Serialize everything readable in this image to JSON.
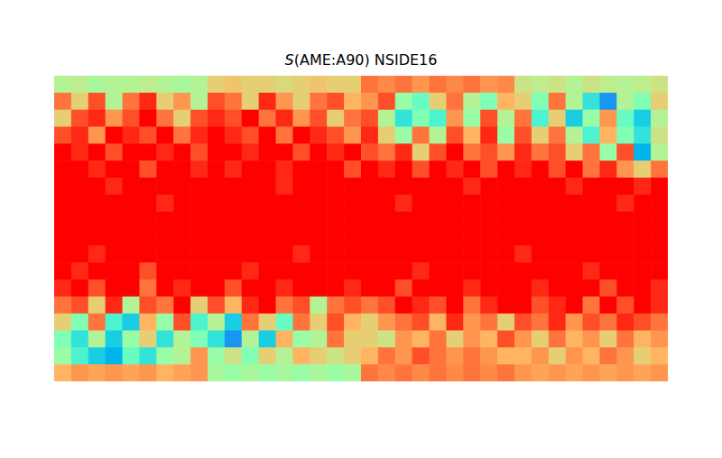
{
  "chart_data": {
    "type": "heatmap",
    "title": "S(AME:A90) NSIDE16",
    "tick_labels": false,
    "grid": false,
    "xlim": [
      -180,
      180
    ],
    "ylim": [
      -90,
      90
    ],
    "clim": [
      0,
      1
    ],
    "x": [
      -175,
      -165,
      -155,
      -145,
      -135,
      -125,
      -115,
      -105,
      -95,
      -85,
      -75,
      -65,
      -55,
      -45,
      -35,
      -25,
      -15,
      -5,
      5,
      15,
      25,
      35,
      45,
      55,
      65,
      75,
      85,
      95,
      105,
      115,
      125,
      135,
      145,
      155,
      165,
      175
    ],
    "y": [
      85,
      75,
      65,
      55,
      45,
      35,
      25,
      15,
      5,
      -5,
      -15,
      -25,
      -35,
      -45,
      -55,
      -65,
      -75,
      -85
    ],
    "values": [
      [
        0.6,
        0.62,
        0.58,
        0.6,
        0.6,
        0.62,
        0.6,
        0.58,
        0.6,
        0.7,
        0.72,
        0.7,
        0.7,
        0.68,
        0.7,
        0.72,
        0.7,
        0.7,
        0.85,
        0.82,
        0.85,
        0.8,
        0.85,
        0.82,
        0.85,
        0.8,
        0.82,
        0.65,
        0.62,
        0.65,
        0.6,
        0.65,
        0.62,
        0.6,
        0.62,
        0.65
      ],
      [
        0.85,
        0.7,
        0.9,
        0.6,
        0.85,
        0.95,
        0.7,
        0.8,
        0.6,
        0.9,
        0.85,
        0.7,
        0.95,
        0.8,
        0.7,
        0.85,
        0.9,
        0.75,
        0.8,
        0.9,
        0.55,
        0.45,
        0.7,
        0.85,
        0.6,
        0.5,
        0.75,
        0.7,
        0.5,
        0.85,
        0.6,
        0.35,
        0.2,
        0.6,
        0.5,
        0.7
      ],
      [
        0.7,
        0.9,
        0.95,
        0.8,
        0.9,
        1,
        0.85,
        0.7,
        0.9,
        0.95,
        0.9,
        1,
        0.85,
        0.95,
        0.8,
        0.9,
        0.7,
        0.85,
        0.9,
        0.6,
        0.35,
        0.5,
        0.4,
        0.8,
        0.55,
        0.9,
        0.6,
        0.85,
        0.4,
        0.7,
        0.3,
        0.55,
        0.8,
        0.45,
        0.3,
        0.6
      ],
      [
        0.9,
        0.95,
        0.8,
        1,
        0.95,
        0.9,
        1,
        0.85,
        0.95,
        1,
        0.95,
        0.9,
        1,
        0.85,
        1,
        0.95,
        0.9,
        0.8,
        0.95,
        0.7,
        0.55,
        0.85,
        0.6,
        0.9,
        0.75,
        0.95,
        0.55,
        0.9,
        0.7,
        0.85,
        0.6,
        0.4,
        0.75,
        0.5,
        0.35,
        0.65
      ],
      [
        1,
        0.95,
        1,
        0.9,
        1,
        1,
        0.95,
        1,
        0.9,
        1,
        1,
        0.95,
        1,
        1,
        0.9,
        1,
        0.95,
        1,
        0.9,
        0.85,
        0.95,
        0.7,
        0.9,
        1,
        0.85,
        0.9,
        0.8,
        0.95,
        0.85,
        0.9,
        0.7,
        0.85,
        0.55,
        0.9,
        0.25,
        0.6
      ],
      [
        1,
        1,
        0.95,
        1,
        1,
        0.9,
        1,
        1,
        0.95,
        1,
        0.95,
        1,
        1,
        0.95,
        1,
        1,
        1,
        0.9,
        1,
        0.95,
        1,
        0.9,
        1,
        0.95,
        1,
        0.9,
        1,
        0.95,
        1,
        0.9,
        1,
        0.85,
        0.95,
        0.8,
        0.7,
        0.85
      ],
      [
        1,
        1,
        1,
        0.95,
        1,
        1,
        1,
        1,
        1,
        1,
        1,
        1,
        1,
        0.95,
        1,
        1,
        1,
        1,
        1,
        1,
        1,
        1,
        1,
        1,
        0.95,
        1,
        1,
        1,
        1,
        1,
        0.95,
        1,
        1,
        1,
        0.95,
        1
      ],
      [
        1,
        1,
        1,
        1,
        1,
        1,
        0.95,
        1,
        1,
        1,
        1,
        1,
        1,
        1,
        1,
        1,
        1,
        1,
        1,
        1,
        0.95,
        1,
        1,
        1,
        1,
        1,
        1,
        1,
        1,
        1,
        1,
        1,
        1,
        0.95,
        1,
        1
      ],
      [
        1,
        1,
        1,
        1,
        1,
        1,
        1,
        1,
        1,
        1,
        1,
        1,
        1,
        1,
        1,
        1,
        1,
        1,
        1,
        1,
        1,
        1,
        1,
        1,
        1,
        1,
        1,
        1,
        1,
        1,
        1,
        1,
        1,
        1,
        1,
        1
      ],
      [
        1,
        1,
        1,
        1,
        1,
        1,
        1,
        1,
        1,
        1,
        1,
        1,
        1,
        1,
        1,
        1,
        1,
        1,
        1,
        1,
        1,
        1,
        1,
        1,
        1,
        1,
        1,
        1,
        1,
        1,
        1,
        1,
        1,
        1,
        1,
        1
      ],
      [
        1,
        1,
        0.95,
        1,
        1,
        1,
        1,
        1,
        1,
        1,
        1,
        1,
        1,
        1,
        0.95,
        1,
        1,
        1,
        1,
        1,
        1,
        1,
        1,
        1,
        1,
        1,
        1,
        0.95,
        1,
        1,
        1,
        1,
        1,
        1,
        1,
        1
      ],
      [
        1,
        0.95,
        1,
        1,
        1,
        0.9,
        1,
        1,
        1,
        1,
        1,
        0.95,
        1,
        1,
        1,
        1,
        1,
        1,
        1,
        1,
        1,
        0.95,
        1,
        1,
        1,
        1,
        1,
        1,
        1,
        1,
        1,
        0.95,
        1,
        1,
        1,
        1
      ],
      [
        0.95,
        1,
        0.9,
        1,
        1,
        0.85,
        1,
        0.95,
        1,
        1,
        0.9,
        1,
        1,
        0.95,
        1,
        1,
        1,
        0.95,
        1,
        1,
        0.9,
        1,
        1,
        1,
        0.95,
        1,
        1,
        1,
        0.95,
        1,
        1,
        1,
        0.9,
        1,
        1,
        0.95
      ],
      [
        0.85,
        0.9,
        0.7,
        0.95,
        0.6,
        0.9,
        0.85,
        1,
        0.7,
        0.9,
        0.75,
        0.95,
        1,
        0.85,
        0.9,
        0.6,
        0.85,
        0.9,
        0.85,
        0.9,
        1,
        0.95,
        0.9,
        1,
        0.85,
        0.95,
        1,
        1,
        0.9,
        0.95,
        1,
        0.85,
        1,
        0.9,
        1,
        0.95
      ],
      [
        0.7,
        0.5,
        0.85,
        0.4,
        0.3,
        0.75,
        0.55,
        0.9,
        0.4,
        0.6,
        0.3,
        0.85,
        0.7,
        0.45,
        0.85,
        0.7,
        0.9,
        0.75,
        0.7,
        0.8,
        0.85,
        0.9,
        0.75,
        0.95,
        0.8,
        0.85,
        0.7,
        0.9,
        0.85,
        0.95,
        0.8,
        0.9,
        0.85,
        0.95,
        0.9,
        0.85
      ],
      [
        0.5,
        0.35,
        0.6,
        0.3,
        0.55,
        0.7,
        0.35,
        0.6,
        0.5,
        0.35,
        0.2,
        0.6,
        0.3,
        0.75,
        0.55,
        0.6,
        0.85,
        0.7,
        0.7,
        0.65,
        0.8,
        0.75,
        0.85,
        0.7,
        0.8,
        0.75,
        0.9,
        0.8,
        0.7,
        0.85,
        0.75,
        0.8,
        0.7,
        0.85,
        0.75,
        0.8
      ],
      [
        0.55,
        0.4,
        0.3,
        0.25,
        0.45,
        0.35,
        0.55,
        0.6,
        0.8,
        0.55,
        0.65,
        0.5,
        0.7,
        0.6,
        0.75,
        0.7,
        0.65,
        0.7,
        0.75,
        0.85,
        0.8,
        0.9,
        0.85,
        0.8,
        0.85,
        0.8,
        0.75,
        0.75,
        0.8,
        0.7,
        0.8,
        0.75,
        0.85,
        0.8,
        0.7,
        0.75
      ],
      [
        0.75,
        0.8,
        0.78,
        0.8,
        0.78,
        0.8,
        0.75,
        0.78,
        0.8,
        0.58,
        0.55,
        0.58,
        0.55,
        0.58,
        0.55,
        0.58,
        0.55,
        0.58,
        0.85,
        0.82,
        0.85,
        0.82,
        0.85,
        0.82,
        0.85,
        0.82,
        0.85,
        0.8,
        0.78,
        0.8,
        0.78,
        0.8,
        0.78,
        0.8,
        0.78,
        0.8
      ]
    ]
  }
}
